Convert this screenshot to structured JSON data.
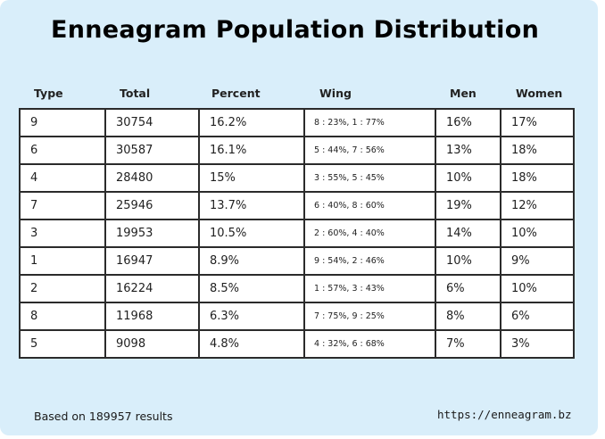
{
  "title": "Enneagram Population Distribution",
  "table": {
    "headers": {
      "type": "Type",
      "total": "Total",
      "percent": "Percent",
      "wing": "Wing",
      "men": "Men",
      "women": "Women"
    },
    "rows": [
      {
        "type": "9",
        "total": "30754",
        "percent": "16.2%",
        "wing": "8 : 23%, 1 : 77%",
        "men": "16%",
        "women": "17%"
      },
      {
        "type": "6",
        "total": "30587",
        "percent": "16.1%",
        "wing": "5 : 44%, 7 : 56%",
        "men": "13%",
        "women": "18%"
      },
      {
        "type": "4",
        "total": "28480",
        "percent": "15%",
        "wing": "3 : 55%, 5 : 45%",
        "men": "10%",
        "women": "18%"
      },
      {
        "type": "7",
        "total": "25946",
        "percent": "13.7%",
        "wing": "6 : 40%, 8 : 60%",
        "men": "19%",
        "women": "12%"
      },
      {
        "type": "3",
        "total": "19953",
        "percent": "10.5%",
        "wing": "2 : 60%, 4 : 40%",
        "men": "14%",
        "women": "10%"
      },
      {
        "type": "1",
        "total": "16947",
        "percent": "8.9%",
        "wing": "9 : 54%, 2 : 46%",
        "men": "10%",
        "women": "9%"
      },
      {
        "type": "2",
        "total": "16224",
        "percent": "8.5%",
        "wing": "1 : 57%, 3 : 43%",
        "men": "6%",
        "women": "10%"
      },
      {
        "type": "8",
        "total": "11968",
        "percent": "6.3%",
        "wing": "7 : 75%, 9 : 25%",
        "men": "8%",
        "women": "6%"
      },
      {
        "type": "5",
        "total": "9098",
        "percent": "4.8%",
        "wing": "4 : 32%, 6 : 68%",
        "men": "7%",
        "women": "3%"
      }
    ]
  },
  "footer": {
    "results_note": "Based on 189957 results",
    "url": "https://enneagram.bz"
  },
  "colors": {
    "background": "#d9eefa",
    "table_bg": "#ffffff",
    "border": "#2b2b2b"
  }
}
